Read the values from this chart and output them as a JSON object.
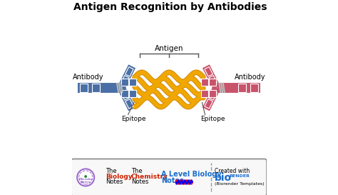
{
  "title": "Antigen Recognition by Antibodies",
  "title_fontsize": 10,
  "background_color": "#ffffff",
  "blue_color": "#4a6fa5",
  "pink_color": "#c9536a",
  "gold_color": "#f0a800",
  "dark_gold": "#d4890a",
  "label_antibody_left": "Antibody",
  "label_antibody_right": "Antibody",
  "label_antigen": "Antigen",
  "label_epitope_left": "Epitope",
  "label_epitope_right": "Epitope",
  "footer_bg": "#f8f8f8",
  "footer_border": "#888888",
  "microbe_notes_color": "#9966cc"
}
